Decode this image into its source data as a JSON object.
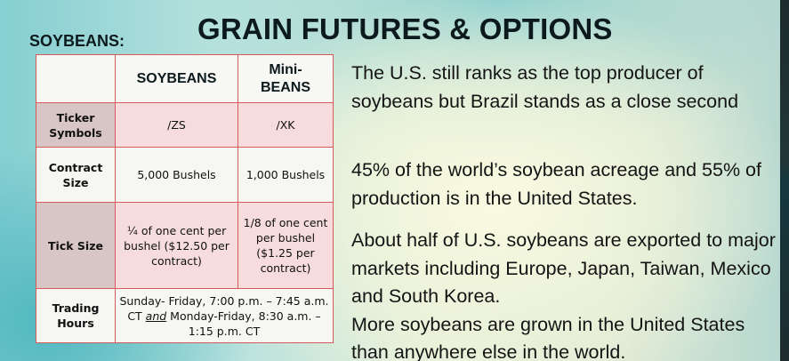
{
  "slide": {
    "section_label": "SOYBEANS:",
    "title": "GRAIN FUTURES & OPTIONS"
  },
  "table": {
    "headers": [
      "",
      "SOYBEANS",
      "Mini-\nBEANS"
    ],
    "rows": [
      {
        "label": "Ticker Symbols",
        "soybeans": "/ZS",
        "mini": "/XK"
      },
      {
        "label": "Contract Size",
        "soybeans": "5,000 Bushels",
        "mini": "1,000 Bushels"
      },
      {
        "label": "Tick Size",
        "soybeans": "¼ of one cent per bushel ($12.50 per contract)",
        "mini": "1/8 of one cent per bushel ($1.25 per contract)"
      },
      {
        "label": "Trading Hours",
        "hours_part1": "Sunday- Friday, 7:00 p.m. – 7:45 a.m. CT ",
        "hours_and": "and",
        "hours_part2": " Monday-Friday, 8:30 a.m. – 1:15 p.m. CT"
      }
    ]
  },
  "paragraphs": [
    "The U.S. still ranks as the top producer of soybeans but Brazil stands as a close second",
    "45% of the world’s soybean acreage and 55% of production is in the United States.",
    "About half of U.S. soybeans are exported to major markets including Europe, Japan, Taiwan, Mexico and South Korea.",
    "More soybeans are grown in the United States than anywhere else in the world."
  ]
}
